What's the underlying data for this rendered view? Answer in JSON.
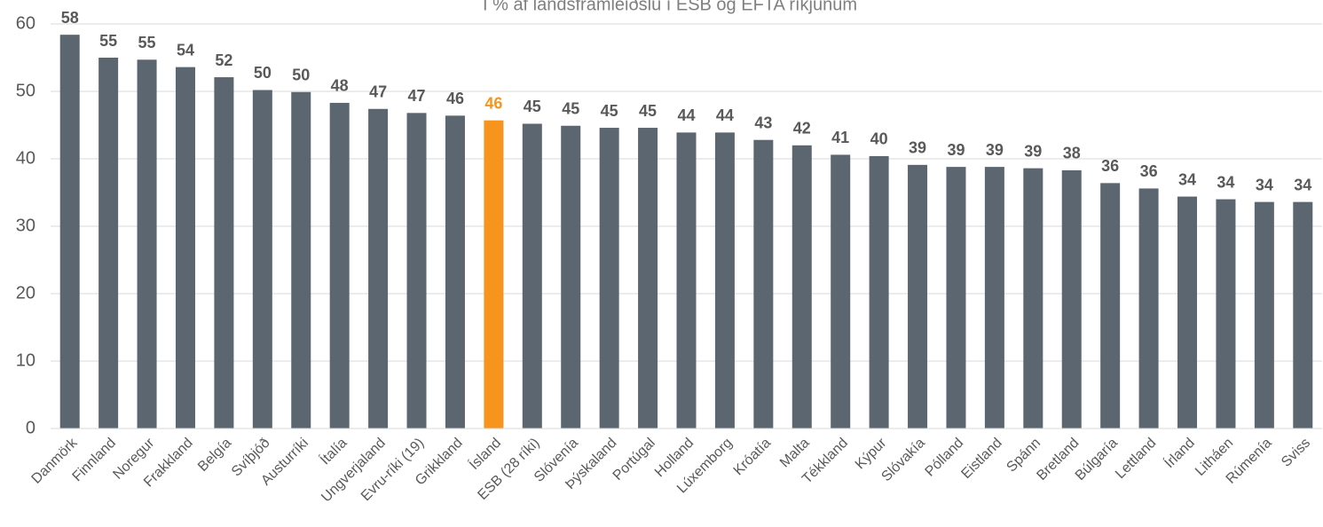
{
  "chart_data": {
    "type": "bar",
    "title": "Í % af landsframleiðslu í ESB og EFTA ríkjunum",
    "categories": [
      "Danmörk",
      "Finnland",
      "Noregur",
      "Frakkland",
      "Belgía",
      "Svíþjóð",
      "Austurríki",
      "Ítalía",
      "Ungverjaland",
      "Evru-ríki (19)",
      "Grikkland",
      "Ísland",
      "ESB (28 ríki)",
      "Slóvenía",
      "Þýskaland",
      "Portúgal",
      "Holland",
      "Lúxemborg",
      "Króatía",
      "Malta",
      "Tékkland",
      "Kýpur",
      "Slóvakía",
      "Pólland",
      "Eistland",
      "Spánn",
      "Bretland",
      "Búlgaría",
      "Lettland",
      "Írland",
      "Litháen",
      "Rúmenía",
      "Sviss"
    ],
    "values": [
      58.4,
      55.0,
      54.7,
      53.6,
      52.1,
      50.2,
      49.9,
      48.3,
      47.4,
      46.8,
      46.4,
      45.7,
      45.2,
      44.9,
      44.6,
      44.6,
      43.9,
      43.9,
      42.8,
      42.0,
      40.6,
      40.4,
      39.1,
      38.8,
      38.8,
      38.6,
      38.3,
      36.4,
      35.6,
      34.4,
      34.0,
      33.6,
      33.6
    ],
    "value_labels": [
      "58",
      "55",
      "55",
      "54",
      "52",
      "50",
      "50",
      "48",
      "47",
      "47",
      "46",
      "46",
      "45",
      "45",
      "45",
      "45",
      "44",
      "44",
      "43",
      "42",
      "41",
      "40",
      "39",
      "39",
      "39",
      "39",
      "38",
      "36",
      "36",
      "34",
      "34",
      "34",
      "34"
    ],
    "colors": [
      "#5c6670",
      "#5c6670",
      "#5c6670",
      "#5c6670",
      "#5c6670",
      "#5c6670",
      "#5c6670",
      "#5c6670",
      "#5c6670",
      "#5c6670",
      "#5c6670",
      "#f7941d",
      "#5c6670",
      "#5c6670",
      "#5c6670",
      "#5c6670",
      "#5c6670",
      "#5c6670",
      "#5c6670",
      "#5c6670",
      "#5c6670",
      "#5c6670",
      "#5c6670",
      "#5c6670",
      "#5c6670",
      "#5c6670",
      "#5c6670",
      "#5c6670",
      "#5c6670",
      "#5c6670",
      "#5c6670",
      "#5c6670",
      "#5c6670"
    ],
    "ylim": [
      0,
      60
    ],
    "yticks": [
      0,
      10,
      20,
      30,
      40,
      50,
      60
    ],
    "grid": true
  }
}
